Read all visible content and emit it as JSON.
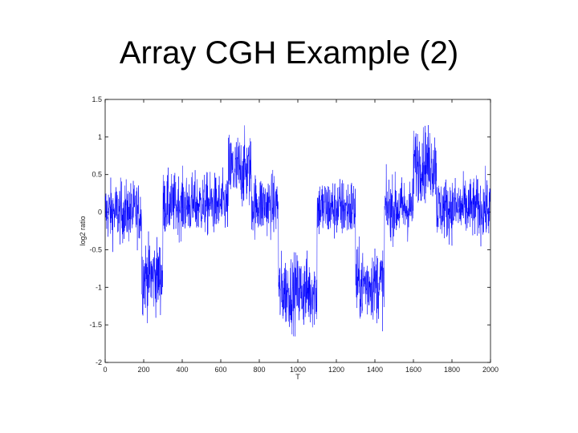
{
  "slide": {
    "title": "Array CGH Example (2)"
  },
  "chart_data": {
    "type": "line",
    "title": "",
    "xlabel": "T",
    "ylabel": "log2 ratio",
    "xlim": [
      0,
      2000
    ],
    "ylim": [
      -2,
      1.5
    ],
    "x_ticks": [
      0,
      200,
      400,
      600,
      800,
      1000,
      1200,
      1400,
      1600,
      1800,
      2000
    ],
    "y_ticks": [
      1.5,
      1,
      0.5,
      0,
      -0.5,
      -1,
      -1.5,
      -2
    ],
    "x_tick_labels": [
      "0",
      "200",
      "400",
      "600",
      "800",
      "1000",
      "1200",
      "1400",
      "1600",
      "1800",
      "2000"
    ],
    "y_tick_labels": [
      "1.5",
      "1",
      "0.5",
      "0",
      "-0.5",
      "-1",
      "-1.5",
      "-2"
    ],
    "grid": false,
    "color": "#0000ff",
    "series": [
      {
        "segments": [
          {
            "x": [
              0,
              190
            ],
            "mean": 0.0,
            "noise": 0.25
          },
          {
            "x": [
              190,
              300
            ],
            "mean": -0.85,
            "noise": 0.3
          },
          {
            "x": [
              300,
              510
            ],
            "mean": 0.1,
            "noise": 0.25
          },
          {
            "x": [
              510,
              640
            ],
            "mean": 0.1,
            "noise": 0.25
          },
          {
            "x": [
              640,
              760
            ],
            "mean": 0.55,
            "noise": 0.3
          },
          {
            "x": [
              760,
              900
            ],
            "mean": 0.1,
            "noise": 0.25
          },
          {
            "x": [
              900,
              1100
            ],
            "mean": -1.05,
            "noise": 0.3
          },
          {
            "x": [
              1100,
              1300
            ],
            "mean": 0.05,
            "noise": 0.25
          },
          {
            "x": [
              1300,
              1450
            ],
            "mean": -0.95,
            "noise": 0.3
          },
          {
            "x": [
              1450,
              1600
            ],
            "mean": 0.05,
            "noise": 0.25
          },
          {
            "x": [
              1600,
              1720
            ],
            "mean": 0.65,
            "noise": 0.3
          },
          {
            "x": [
              1720,
              2000
            ],
            "mean": 0.05,
            "noise": 0.25
          }
        ]
      }
    ]
  }
}
